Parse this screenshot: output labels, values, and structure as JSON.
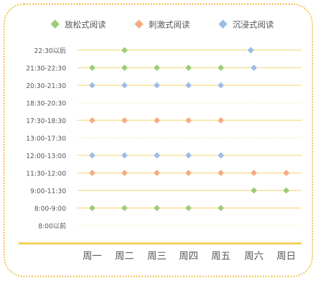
{
  "chart_data": {
    "type": "scatter",
    "title": "",
    "xlabel": "",
    "ylabel": "",
    "legend_position": "top",
    "grid": true,
    "categories": [
      "周一",
      "周二",
      "周三",
      "周四",
      "周五",
      "周六",
      "周日"
    ],
    "time_slots": [
      "8:00以前",
      "8:00-9:00",
      "9:00-11:30",
      "11:30-12:00",
      "12:00-13:00",
      "13:00-17:30",
      "17:30-18:30",
      "18:30-20:30",
      "20:30-21:30",
      "21:30-22:30",
      "22:30以后"
    ],
    "series": [
      {
        "name": "放松式阅读",
        "color": "#9ccc7a",
        "points": [
          {
            "x": "周一",
            "y": "8:00-9:00"
          },
          {
            "x": "周二",
            "y": "8:00-9:00"
          },
          {
            "x": "周三",
            "y": "8:00-9:00"
          },
          {
            "x": "周四",
            "y": "8:00-9:00"
          },
          {
            "x": "周五",
            "y": "8:00-9:00"
          },
          {
            "x": "周六",
            "y": "9:00-11:30"
          },
          {
            "x": "周日",
            "y": "9:00-11:30"
          },
          {
            "x": "周一",
            "y": "21:30-22:30"
          },
          {
            "x": "周二",
            "y": "21:30-22:30"
          },
          {
            "x": "周三",
            "y": "21:30-22:30"
          },
          {
            "x": "周四",
            "y": "21:30-22:30"
          },
          {
            "x": "周五",
            "y": "21:30-22:30"
          },
          {
            "x": "周二",
            "y": "22:30以后"
          },
          {
            "x": "周六",
            "y": "22:30以后"
          }
        ]
      },
      {
        "name": "刺激式阅读",
        "color": "#f3ac82",
        "points": [
          {
            "x": "周一",
            "y": "11:30-12:00"
          },
          {
            "x": "周二",
            "y": "11:30-12:00"
          },
          {
            "x": "周三",
            "y": "11:30-12:00"
          },
          {
            "x": "周四",
            "y": "11:30-12:00"
          },
          {
            "x": "周五",
            "y": "11:30-12:00"
          },
          {
            "x": "周六",
            "y": "11:30-12:00"
          },
          {
            "x": "周日",
            "y": "11:30-12:00"
          },
          {
            "x": "周一",
            "y": "17:30-18:30"
          },
          {
            "x": "周二",
            "y": "17:30-18:30"
          },
          {
            "x": "周三",
            "y": "17:30-18:30"
          },
          {
            "x": "周四",
            "y": "17:30-18:30"
          },
          {
            "x": "周五",
            "y": "17:30-18:30"
          }
        ]
      },
      {
        "name": "沉浸式阅读",
        "color": "#9cbde6",
        "points": [
          {
            "x": "周一",
            "y": "12:00-13:00"
          },
          {
            "x": "周二",
            "y": "12:00-13:00"
          },
          {
            "x": "周三",
            "y": "12:00-13:00"
          },
          {
            "x": "周四",
            "y": "12:00-13:00"
          },
          {
            "x": "周五",
            "y": "12:00-13:00"
          },
          {
            "x": "周一",
            "y": "20:30-21:30"
          },
          {
            "x": "周二",
            "y": "20:30-21:30"
          },
          {
            "x": "周三",
            "y": "20:30-21:30"
          },
          {
            "x": "周四",
            "y": "20:30-21:30"
          },
          {
            "x": "周五",
            "y": "20:30-21:30"
          },
          {
            "x": "周六",
            "y": "21:30-22:30"
          },
          {
            "x": "周六",
            "y": "22:30以后"
          }
        ]
      }
    ]
  },
  "colors": {
    "frame_border": "#f2c14a",
    "gridline": "#f5dc82",
    "gridline_faint": "#f7ecc4",
    "baseline": "#f3cf55",
    "text": "#555555"
  }
}
